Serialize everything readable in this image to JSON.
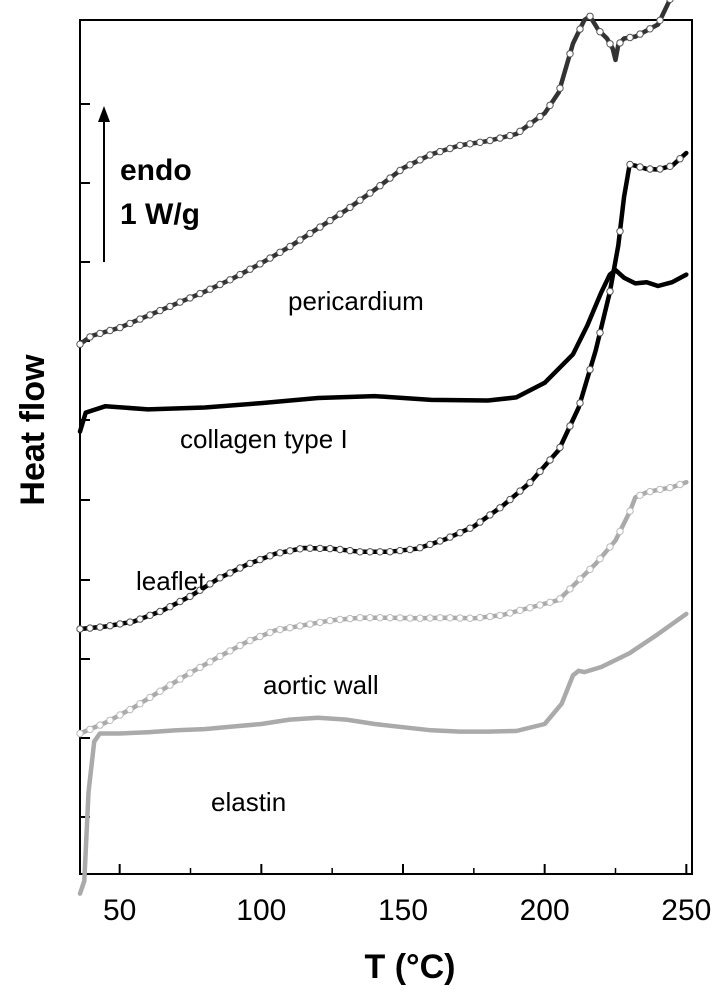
{
  "chart_data": {
    "type": "line",
    "title": "",
    "xlabel": "T (°C)",
    "ylabel": "Heat flow",
    "xlim": [
      36,
      252
    ],
    "x_ticks": [
      50,
      100,
      150,
      200,
      250
    ],
    "y_ticks_labeled": false,
    "grid": false,
    "legend": "none",
    "scale_bar": {
      "line1": "endo",
      "line2": "1 W/g"
    },
    "series": [
      {
        "name": "pericardium",
        "color": "#333333",
        "marker": "open-circle",
        "points": [
          [
            36,
            7.88
          ],
          [
            40,
            8.01
          ],
          [
            50,
            8.14
          ],
          [
            60,
            8.33
          ],
          [
            70,
            8.52
          ],
          [
            80,
            8.71
          ],
          [
            90,
            8.92
          ],
          [
            100,
            9.16
          ],
          [
            110,
            9.42
          ],
          [
            120,
            9.71
          ],
          [
            130,
            10.0
          ],
          [
            140,
            10.32
          ],
          [
            150,
            10.66
          ],
          [
            160,
            10.88
          ],
          [
            170,
            11.02
          ],
          [
            180,
            11.09
          ],
          [
            190,
            11.2
          ],
          [
            200,
            11.53
          ],
          [
            205,
            11.86
          ],
          [
            210,
            12.63
          ],
          [
            214,
            13.0
          ],
          [
            216,
            13.06
          ],
          [
            219,
            12.84
          ],
          [
            222,
            12.71
          ],
          [
            224,
            12.55
          ],
          [
            225,
            12.37
          ],
          [
            226,
            12.61
          ],
          [
            228,
            12.71
          ],
          [
            232,
            12.74
          ],
          [
            240,
            12.93
          ],
          [
            245,
            13.4
          ],
          [
            250,
            14.07
          ]
        ]
      },
      {
        "name": "collagen type I",
        "color": "#000000",
        "marker": "none",
        "points": [
          [
            36,
            6.5
          ],
          [
            38,
            6.8
          ],
          [
            45,
            6.9
          ],
          [
            60,
            6.85
          ],
          [
            80,
            6.88
          ],
          [
            100,
            6.95
          ],
          [
            120,
            7.03
          ],
          [
            140,
            7.06
          ],
          [
            160,
            7.0
          ],
          [
            180,
            6.99
          ],
          [
            190,
            7.04
          ],
          [
            200,
            7.27
          ],
          [
            210,
            7.72
          ],
          [
            215,
            8.17
          ],
          [
            220,
            8.7
          ],
          [
            223,
            8.98
          ],
          [
            225,
            9.05
          ],
          [
            228,
            8.93
          ],
          [
            232,
            8.84
          ],
          [
            236,
            8.86
          ],
          [
            240,
            8.8
          ],
          [
            245,
            8.86
          ],
          [
            250,
            8.98
          ]
        ]
      },
      {
        "name": "leaflet",
        "color": "#000000",
        "marker": "open-circle",
        "points": [
          [
            36,
            3.38
          ],
          [
            45,
            3.42
          ],
          [
            55,
            3.5
          ],
          [
            65,
            3.67
          ],
          [
            75,
            3.9
          ],
          [
            85,
            4.18
          ],
          [
            95,
            4.4
          ],
          [
            105,
            4.57
          ],
          [
            115,
            4.66
          ],
          [
            125,
            4.65
          ],
          [
            135,
            4.6
          ],
          [
            145,
            4.6
          ],
          [
            155,
            4.65
          ],
          [
            165,
            4.8
          ],
          [
            175,
            5.0
          ],
          [
            185,
            5.32
          ],
          [
            195,
            5.7
          ],
          [
            205,
            6.21
          ],
          [
            212,
            6.88
          ],
          [
            218,
            7.78
          ],
          [
            223,
            8.7
          ],
          [
            226,
            9.44
          ],
          [
            228,
            10.2
          ],
          [
            230,
            10.72
          ],
          [
            232,
            10.7
          ],
          [
            236,
            10.65
          ],
          [
            240,
            10.64
          ],
          [
            245,
            10.7
          ],
          [
            250,
            10.9
          ]
        ]
      },
      {
        "name": "aortic wall",
        "color": "#aaaaaa",
        "marker": "open-circle",
        "points": [
          [
            36,
            1.73
          ],
          [
            45,
            1.9
          ],
          [
            55,
            2.14
          ],
          [
            65,
            2.42
          ],
          [
            75,
            2.69
          ],
          [
            85,
            2.94
          ],
          [
            95,
            3.18
          ],
          [
            105,
            3.36
          ],
          [
            115,
            3.44
          ],
          [
            125,
            3.52
          ],
          [
            135,
            3.56
          ],
          [
            145,
            3.56
          ],
          [
            155,
            3.55
          ],
          [
            165,
            3.56
          ],
          [
            175,
            3.55
          ],
          [
            185,
            3.6
          ],
          [
            195,
            3.72
          ],
          [
            205,
            3.84
          ],
          [
            212,
            4.15
          ],
          [
            218,
            4.41
          ],
          [
            225,
            4.78
          ],
          [
            230,
            5.23
          ],
          [
            232,
            5.46
          ],
          [
            236,
            5.54
          ],
          [
            240,
            5.58
          ],
          [
            245,
            5.62
          ],
          [
            250,
            5.7
          ]
        ]
      },
      {
        "name": "elastin",
        "color": "#aaaaaa",
        "marker": "none",
        "points": [
          [
            36,
            -0.8
          ],
          [
            37.5,
            -0.6
          ],
          [
            39,
            0.8
          ],
          [
            41,
            1.6
          ],
          [
            43,
            1.73
          ],
          [
            50,
            1.73
          ],
          [
            60,
            1.75
          ],
          [
            70,
            1.78
          ],
          [
            80,
            1.8
          ],
          [
            90,
            1.84
          ],
          [
            100,
            1.88
          ],
          [
            110,
            1.95
          ],
          [
            120,
            1.98
          ],
          [
            130,
            1.95
          ],
          [
            140,
            1.88
          ],
          [
            150,
            1.83
          ],
          [
            160,
            1.78
          ],
          [
            170,
            1.76
          ],
          [
            180,
            1.76
          ],
          [
            190,
            1.77
          ],
          [
            200,
            1.88
          ],
          [
            206,
            2.2
          ],
          [
            210,
            2.65
          ],
          [
            212,
            2.72
          ],
          [
            214,
            2.7
          ],
          [
            220,
            2.78
          ],
          [
            230,
            3.0
          ],
          [
            240,
            3.3
          ],
          [
            250,
            3.62
          ]
        ]
      }
    ]
  }
}
